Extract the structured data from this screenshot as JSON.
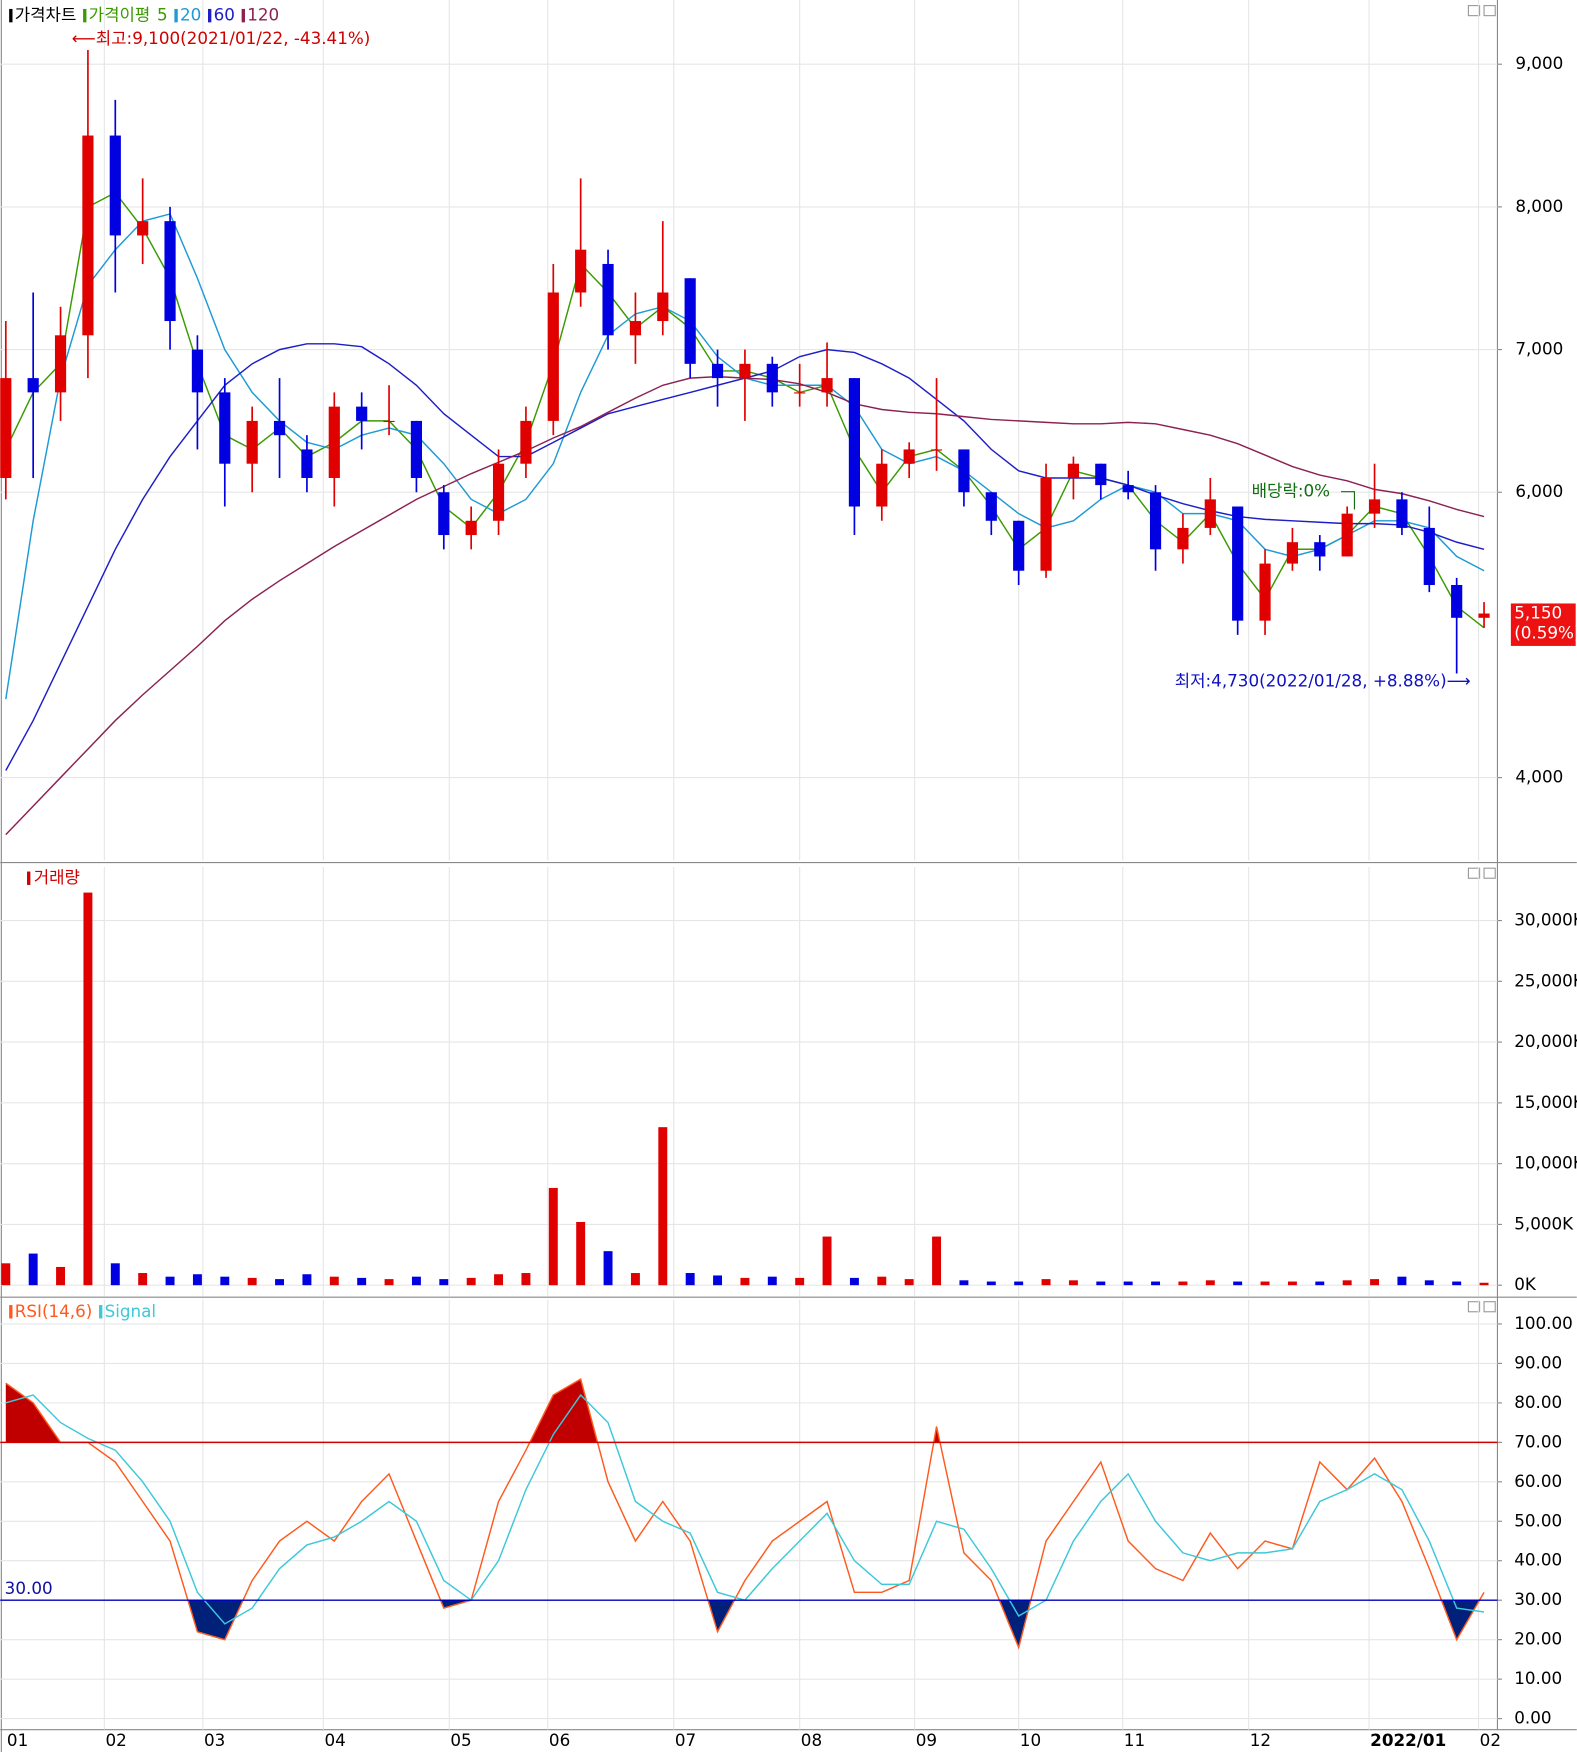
{
  "chart_data": [
    {
      "type": "candlestick",
      "title": "가격차트",
      "ma_label": "가격이평",
      "xlim": [
        0,
        270
      ],
      "x": [
        0,
        5,
        10,
        15,
        20,
        25,
        30,
        35,
        40,
        45,
        50,
        55,
        60,
        65,
        70,
        75,
        80,
        85,
        90,
        95,
        100,
        105,
        110,
        115,
        120,
        125,
        130,
        135,
        140,
        145,
        150,
        155,
        160,
        165,
        170,
        175,
        180,
        185,
        190,
        195,
        200,
        205,
        210,
        215,
        220,
        225,
        230,
        235,
        240,
        245,
        250,
        255,
        260,
        265,
        270
      ],
      "open": [
        6100,
        6800,
        6700,
        7100,
        8500,
        7800,
        7900,
        7000,
        6700,
        6200,
        6500,
        6300,
        6100,
        6600,
        6500,
        6500,
        6000,
        5700,
        5800,
        6200,
        6500,
        7400,
        7600,
        7100,
        7200,
        7500,
        6900,
        6800,
        6900,
        6700,
        6700,
        6800,
        5900,
        6200,
        6300,
        6300,
        6000,
        5800,
        5450,
        6100,
        6200,
        6050,
        6000,
        5600,
        5750,
        5900,
        5100,
        5500,
        5650,
        5550,
        5850,
        5950,
        5750,
        5350,
        5120
      ],
      "high": [
        7200,
        7400,
        7300,
        9100,
        8750,
        8200,
        8000,
        7100,
        6800,
        6600,
        6800,
        6400,
        6700,
        6700,
        6750,
        6500,
        6050,
        5900,
        6300,
        6600,
        7600,
        8200,
        7700,
        7400,
        7900,
        7500,
        7000,
        7000,
        6950,
        6900,
        7050,
        6800,
        6300,
        6350,
        6800,
        6300,
        6000,
        5800,
        6200,
        6250,
        6200,
        6150,
        6050,
        5850,
        6100,
        5900,
        5600,
        5750,
        5700,
        5900,
        6200,
        6000,
        5900,
        5400,
        5230
      ],
      "low": [
        5950,
        6100,
        6500,
        6800,
        7400,
        7600,
        7000,
        6300,
        5900,
        6000,
        6100,
        6000,
        5900,
        6300,
        6400,
        6000,
        5600,
        5600,
        5700,
        6100,
        6400,
        7300,
        7000,
        6900,
        7100,
        6800,
        6600,
        6500,
        6600,
        6600,
        6600,
        5700,
        5800,
        6100,
        6150,
        5900,
        5700,
        5350,
        5400,
        5950,
        5950,
        5950,
        5450,
        5500,
        5700,
        5000,
        5000,
        5450,
        5450,
        5550,
        5750,
        5700,
        5300,
        4730,
        5050
      ],
      "close": [
        6800,
        6700,
        7100,
        8500,
        7800,
        7900,
        7200,
        6700,
        6200,
        6500,
        6400,
        6100,
        6600,
        6500,
        6500,
        6100,
        5700,
        5800,
        6200,
        6500,
        7400,
        7700,
        7100,
        7200,
        7400,
        6900,
        6800,
        6900,
        6700,
        6700,
        6800,
        5900,
        6200,
        6300,
        6300,
        6000,
        5800,
        5450,
        6100,
        6200,
        6050,
        6000,
        5600,
        5750,
        5950,
        5100,
        5500,
        5650,
        5550,
        5850,
        5950,
        5750,
        5350,
        5120,
        5150
      ],
      "up_color": "#e00000",
      "down_color": "#0000e0",
      "series": [
        {
          "name": "5",
          "color": "#3a9a00",
          "values": [
            6300,
            6700,
            6900,
            8000,
            8100,
            7850,
            7500,
            6900,
            6400,
            6300,
            6450,
            6250,
            6350,
            6500,
            6500,
            6300,
            5900,
            5750,
            6000,
            6350,
            6900,
            7600,
            7400,
            7150,
            7300,
            7150,
            6850,
            6850,
            6800,
            6700,
            6750,
            6300,
            6000,
            6250,
            6300,
            6150,
            5900,
            5600,
            5750,
            6150,
            6100,
            6050,
            5800,
            5650,
            5850,
            5500,
            5250,
            5600,
            5600,
            5700,
            5900,
            5850,
            5550,
            5200,
            5050
          ]
        },
        {
          "name": "20",
          "color": "#1e9ad6",
          "values": [
            4550,
            5800,
            6800,
            7450,
            7700,
            7900,
            7950,
            7500,
            7000,
            6700,
            6500,
            6350,
            6300,
            6400,
            6450,
            6400,
            6200,
            5950,
            5850,
            5950,
            6200,
            6700,
            7100,
            7250,
            7300,
            7200,
            6950,
            6800,
            6750,
            6750,
            6750,
            6600,
            6300,
            6200,
            6250,
            6150,
            6000,
            5850,
            5750,
            5800,
            5950,
            6050,
            6000,
            5850,
            5850,
            5800,
            5600,
            5550,
            5600,
            5700,
            5800,
            5800,
            5750,
            5550,
            5450
          ]
        },
        {
          "name": "60",
          "color": "#1e1ec8",
          "values": [
            4050,
            4400,
            4800,
            5200,
            5600,
            5950,
            6250,
            6500,
            6750,
            6900,
            7000,
            7040,
            7040,
            7020,
            6900,
            6750,
            6550,
            6400,
            6250,
            6250,
            6350,
            6450,
            6550,
            6600,
            6650,
            6700,
            6750,
            6800,
            6850,
            6950,
            7000,
            6980,
            6900,
            6800,
            6650,
            6500,
            6300,
            6150,
            6100,
            6100,
            6100,
            6050,
            5980,
            5920,
            5870,
            5830,
            5810,
            5800,
            5790,
            5780,
            5780,
            5770,
            5720,
            5650,
            5600
          ]
        },
        {
          "name": "120",
          "color": "#8b2252",
          "values": [
            3600,
            3800,
            4000,
            4200,
            4400,
            4580,
            4750,
            4920,
            5100,
            5250,
            5380,
            5500,
            5620,
            5730,
            5840,
            5950,
            6040,
            6130,
            6210,
            6290,
            6380,
            6460,
            6560,
            6660,
            6750,
            6800,
            6810,
            6800,
            6790,
            6760,
            6700,
            6620,
            6580,
            6560,
            6550,
            6530,
            6510,
            6500,
            6490,
            6480,
            6480,
            6490,
            6480,
            6440,
            6400,
            6340,
            6260,
            6180,
            6120,
            6080,
            6020,
            5990,
            5940,
            5880,
            5830
          ]
        }
      ],
      "ylim": [
        3420,
        9450
      ],
      "yticks": [
        {
          "value": 4000,
          "label": "4,000"
        },
        {
          "value": 6000,
          "label": "6,000"
        },
        {
          "value": 7000,
          "label": "7,000"
        },
        {
          "value": 8000,
          "label": "8,000"
        },
        {
          "value": 9000,
          "label": "9,000"
        }
      ],
      "grid": true,
      "last_price": {
        "value": 5150,
        "label": "5,150"
      },
      "last_change": "(0.59%)",
      "annotations": [
        "⟵최고:9,100(2021/01/22, -43.41%)",
        "최저:4,730(2022/01/28, +8.88%)⟶",
        "배당락:0%"
      ]
    },
    {
      "type": "bar",
      "title": "거래량",
      "xlim": [
        0,
        270
      ],
      "x": [
        0,
        5,
        10,
        15,
        20,
        25,
        30,
        35,
        40,
        45,
        50,
        55,
        60,
        65,
        70,
        75,
        80,
        85,
        90,
        95,
        100,
        105,
        110,
        115,
        120,
        125,
        130,
        135,
        140,
        145,
        150,
        155,
        160,
        165,
        170,
        175,
        180,
        185,
        190,
        195,
        200,
        205,
        210,
        215,
        220,
        225,
        230,
        235,
        240,
        245,
        250,
        255,
        260,
        265,
        270
      ],
      "values": [
        1800,
        2600,
        1500,
        32300,
        1800,
        1000,
        700,
        900,
        700,
        600,
        500,
        900,
        700,
        600,
        500,
        700,
        500,
        600,
        900,
        1000,
        8000,
        5200,
        2800,
        1000,
        13000,
        1000,
        800,
        600,
        700,
        600,
        4000,
        600,
        700,
        500,
        4000,
        400,
        300,
        300,
        500,
        400,
        300,
        300,
        300,
        300,
        400,
        300,
        300,
        300,
        300,
        400,
        500,
        700,
        400,
        300,
        200
      ],
      "ylim": [
        -900,
        34400
      ],
      "yticks": [
        {
          "value": 0,
          "label": "0K"
        },
        {
          "value": 5000,
          "label": "5,000K"
        },
        {
          "value": 10000,
          "label": "10,000K"
        },
        {
          "value": 15000,
          "label": "15,000K"
        },
        {
          "value": 20000,
          "label": "20,000K"
        },
        {
          "value": 25000,
          "label": "25,000K"
        },
        {
          "value": 30000,
          "label": "30,000K"
        }
      ],
      "grid": true
    },
    {
      "type": "line",
      "xlim": [
        0,
        270
      ],
      "x": [
        0,
        5,
        10,
        15,
        20,
        25,
        30,
        35,
        40,
        45,
        50,
        55,
        60,
        65,
        70,
        75,
        80,
        85,
        90,
        95,
        100,
        105,
        110,
        115,
        120,
        125,
        130,
        135,
        140,
        145,
        150,
        155,
        160,
        165,
        170,
        175,
        180,
        185,
        190,
        195,
        200,
        205,
        210,
        215,
        220,
        225,
        230,
        235,
        240,
        245,
        250,
        255,
        260,
        265,
        270
      ],
      "series": [
        {
          "name": "RSI(14,6)",
          "color": "#ff5a1e",
          "values": [
            85,
            80,
            70,
            70,
            65,
            55,
            45,
            22,
            20,
            35,
            45,
            50,
            45,
            55,
            62,
            45,
            28,
            30,
            55,
            68,
            82,
            86,
            60,
            45,
            55,
            45,
            22,
            35,
            45,
            50,
            55,
            32,
            32,
            35,
            74,
            42,
            35,
            18,
            45,
            55,
            65,
            45,
            38,
            35,
            47,
            38,
            45,
            43,
            65,
            58,
            66,
            55,
            38,
            20,
            32
          ]
        },
        {
          "name": "Signal",
          "color": "#3ec8d8",
          "values": [
            80,
            82,
            75,
            71,
            68,
            60,
            50,
            32,
            24,
            28,
            38,
            44,
            46,
            50,
            55,
            50,
            35,
            30,
            40,
            58,
            72,
            82,
            75,
            55,
            50,
            47,
            32,
            30,
            38,
            45,
            52,
            40,
            34,
            34,
            50,
            48,
            38,
            26,
            30,
            45,
            55,
            62,
            50,
            42,
            40,
            42,
            42,
            43,
            55,
            58,
            62,
            58,
            45,
            28,
            27
          ]
        }
      ],
      "hlines": [
        {
          "value": 70,
          "color": "#d00000",
          "fill": "#c00000"
        },
        {
          "value": 30,
          "color": "#0000c0",
          "fill": "#00207a",
          "label": "30.00"
        }
      ],
      "ylim": [
        -2.8,
        106.2
      ],
      "yticks": [
        {
          "value": 0,
          "label": "0.00"
        },
        {
          "value": 10,
          "label": "10.00"
        },
        {
          "value": 20,
          "label": "20.00"
        },
        {
          "value": 30,
          "label": "30.00"
        },
        {
          "value": 40,
          "label": "40.00"
        },
        {
          "value": 50,
          "label": "50.00"
        },
        {
          "value": 60,
          "label": "60.00"
        },
        {
          "value": 70,
          "label": "70.00"
        },
        {
          "value": 80,
          "label": "80.00"
        },
        {
          "value": 90,
          "label": "90.00"
        },
        {
          "value": 100,
          "label": "100.00"
        }
      ],
      "xticks": [
        {
          "value": 0,
          "label": "01"
        },
        {
          "value": 18,
          "label": "02"
        },
        {
          "value": 36,
          "label": "03"
        },
        {
          "value": 58,
          "label": "04"
        },
        {
          "value": 81,
          "label": "05"
        },
        {
          "value": 99,
          "label": "06"
        },
        {
          "value": 122,
          "label": "07"
        },
        {
          "value": 145,
          "label": "08"
        },
        {
          "value": 166,
          "label": "09"
        },
        {
          "value": 185,
          "label": "10"
        },
        {
          "value": 204,
          "label": "11"
        },
        {
          "value": 227,
          "label": "12"
        },
        {
          "value": 249,
          "label": "2022/01"
        },
        {
          "value": 269,
          "label": "02"
        }
      ],
      "grid": true
    }
  ]
}
